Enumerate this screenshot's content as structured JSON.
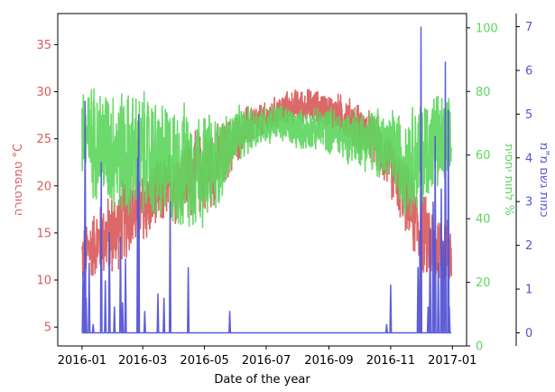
{
  "chart_data": {
    "type": "line",
    "xlabel": "Date of the year",
    "x_ticks": [
      "2016-01",
      "2016-03",
      "2016-05",
      "2016-07",
      "2016-09",
      "2016-11",
      "2017-01"
    ],
    "axes": [
      {
        "id": "temp",
        "label": "טמפרטורה °C",
        "color": "#d95c5c",
        "ylim": [
          3,
          38.3
        ],
        "ticks": [
          5,
          10,
          15,
          20,
          25,
          30,
          35
        ],
        "side": "left"
      },
      {
        "id": "hum",
        "label": "לחות יחסית %",
        "color": "#5ed65e",
        "ylim": [
          0,
          104.5
        ],
        "ticks": [
          0,
          20,
          40,
          60,
          80,
          100
        ],
        "side": "right"
      },
      {
        "id": "rain",
        "label": "כמות גשם מ\"מ",
        "color": "#5555d6",
        "ylim": [
          -0.3,
          7.3
        ],
        "ticks": [
          0,
          1,
          2,
          3,
          4,
          5,
          6,
          7
        ],
        "side": "right-outer"
      }
    ],
    "series": [
      {
        "axis": "temp",
        "color": "#d95c5c",
        "x": [
          "2016-01-01",
          "2016-01-15",
          "2016-02-01",
          "2016-02-15",
          "2016-03-01",
          "2016-03-15",
          "2016-04-01",
          "2016-04-15",
          "2016-05-01",
          "2016-05-15",
          "2016-06-01",
          "2016-06-15",
          "2016-07-01",
          "2016-07-15",
          "2016-08-01",
          "2016-08-15",
          "2016-09-01",
          "2016-09-15",
          "2016-10-01",
          "2016-10-15",
          "2016-11-01",
          "2016-11-15",
          "2016-12-01",
          "2016-12-15",
          "2016-12-31"
        ],
        "center": [
          12.5,
          14,
          15,
          17,
          17.5,
          19,
          20,
          21,
          21.5,
          22.5,
          25,
          26.5,
          27,
          28,
          28.5,
          28.5,
          28,
          27.5,
          26,
          25,
          22,
          19,
          15,
          13.5,
          13
        ],
        "amp": [
          3.5,
          4,
          5,
          5,
          4.5,
          4,
          4.5,
          5,
          5,
          4.5,
          3,
          2.5,
          2,
          2,
          2,
          2,
          2,
          2.5,
          3,
          3,
          3.5,
          4,
          5,
          4.5,
          4
        ]
      },
      {
        "axis": "hum",
        "color": "#5ed65e",
        "x": [
          "2016-01-01",
          "2016-01-15",
          "2016-02-01",
          "2016-02-15",
          "2016-03-01",
          "2016-03-15",
          "2016-04-01",
          "2016-04-15",
          "2016-05-01",
          "2016-05-15",
          "2016-06-01",
          "2016-06-15",
          "2016-07-01",
          "2016-07-15",
          "2016-08-01",
          "2016-08-15",
          "2016-09-01",
          "2016-09-15",
          "2016-10-01",
          "2016-10-15",
          "2016-11-01",
          "2016-11-15",
          "2016-12-01",
          "2016-12-15",
          "2016-12-31"
        ],
        "center": [
          66,
          64,
          62,
          60,
          60,
          58,
          56,
          56,
          56,
          58,
          66,
          68,
          70,
          70,
          68,
          68,
          68,
          66,
          66,
          64,
          62,
          58,
          60,
          64,
          62
        ],
        "amp": [
          18,
          20,
          22,
          22,
          22,
          22,
          22,
          22,
          20,
          16,
          10,
          8,
          7,
          7,
          7,
          7,
          8,
          9,
          10,
          12,
          14,
          18,
          20,
          18,
          16
        ]
      },
      {
        "axis": "rain",
        "color": "#5555d6",
        "baseline": 0,
        "spikes": [
          {
            "x": "2016-01-02",
            "y": 1.4
          },
          {
            "x": "2016-01-04",
            "y": 5.3
          },
          {
            "x": "2016-01-05",
            "y": 0.8
          },
          {
            "x": "2016-01-08",
            "y": 1.6
          },
          {
            "x": "2016-01-12",
            "y": 0.2
          },
          {
            "x": "2016-01-20",
            "y": 3.9
          },
          {
            "x": "2016-01-24",
            "y": 1.2
          },
          {
            "x": "2016-01-28",
            "y": 2.3
          },
          {
            "x": "2016-02-02",
            "y": 0.6
          },
          {
            "x": "2016-02-08",
            "y": 2.2
          },
          {
            "x": "2016-02-10",
            "y": 0.7
          },
          {
            "x": "2016-02-13",
            "y": 1.7
          },
          {
            "x": "2016-02-25",
            "y": 4.0
          },
          {
            "x": "2016-02-26",
            "y": 5.0
          },
          {
            "x": "2016-03-03",
            "y": 0.5
          },
          {
            "x": "2016-03-16",
            "y": 0.9
          },
          {
            "x": "2016-03-22",
            "y": 0.8
          },
          {
            "x": "2016-03-28",
            "y": 3.0
          },
          {
            "x": "2016-04-15",
            "y": 1.5
          },
          {
            "x": "2016-05-26",
            "y": 0.5
          },
          {
            "x": "2016-10-28",
            "y": 0.2
          },
          {
            "x": "2016-11-01",
            "y": 1.1
          },
          {
            "x": "2016-11-28",
            "y": 1.5
          },
          {
            "x": "2016-11-30",
            "y": 2.3
          },
          {
            "x": "2016-12-01",
            "y": 7.0
          },
          {
            "x": "2016-12-08",
            "y": 0.6
          },
          {
            "x": "2016-12-10",
            "y": 2.4
          },
          {
            "x": "2016-12-13",
            "y": 3.0
          },
          {
            "x": "2016-12-15",
            "y": 4.5
          },
          {
            "x": "2016-12-18",
            "y": 1.6
          },
          {
            "x": "2016-12-21",
            "y": 3.3
          },
          {
            "x": "2016-12-23",
            "y": 2.1
          },
          {
            "x": "2016-12-25",
            "y": 6.2
          },
          {
            "x": "2016-12-28",
            "y": 5.1
          },
          {
            "x": "2016-12-29",
            "y": 0.6
          }
        ]
      }
    ],
    "grid": false
  }
}
